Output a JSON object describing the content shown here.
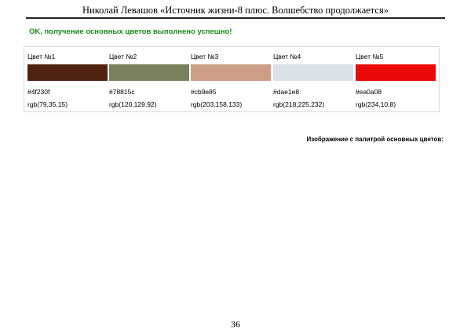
{
  "header": {
    "title": "Николай Левашов «Источник жизни-8 плюс. Волшебство продолжается»"
  },
  "status": {
    "message": "OK, получение основных цветов выполнено успешно!",
    "color": "#1a8a1a"
  },
  "palette": {
    "colors": [
      {
        "label": "Цвет №1",
        "hex": "#4f230f",
        "rgb": "rgb(79,35,15)"
      },
      {
        "label": "Цвет №2",
        "hex": "#78815c",
        "rgb": "rgb(120,129,92)"
      },
      {
        "label": "Цвет №3",
        "hex": "#cb9e85",
        "rgb": "rgb(203,158,133)"
      },
      {
        "label": "Цвет №4",
        "hex": "#dae1e8",
        "rgb": "rgb(218,225,232)"
      },
      {
        "label": "Цвет №5",
        "hex": "#ea0a08",
        "rgb": "rgb(234,10,8)"
      }
    ]
  },
  "caption": "Изображение с палитрой основных цветов:",
  "footer": {
    "page_number": "36"
  }
}
